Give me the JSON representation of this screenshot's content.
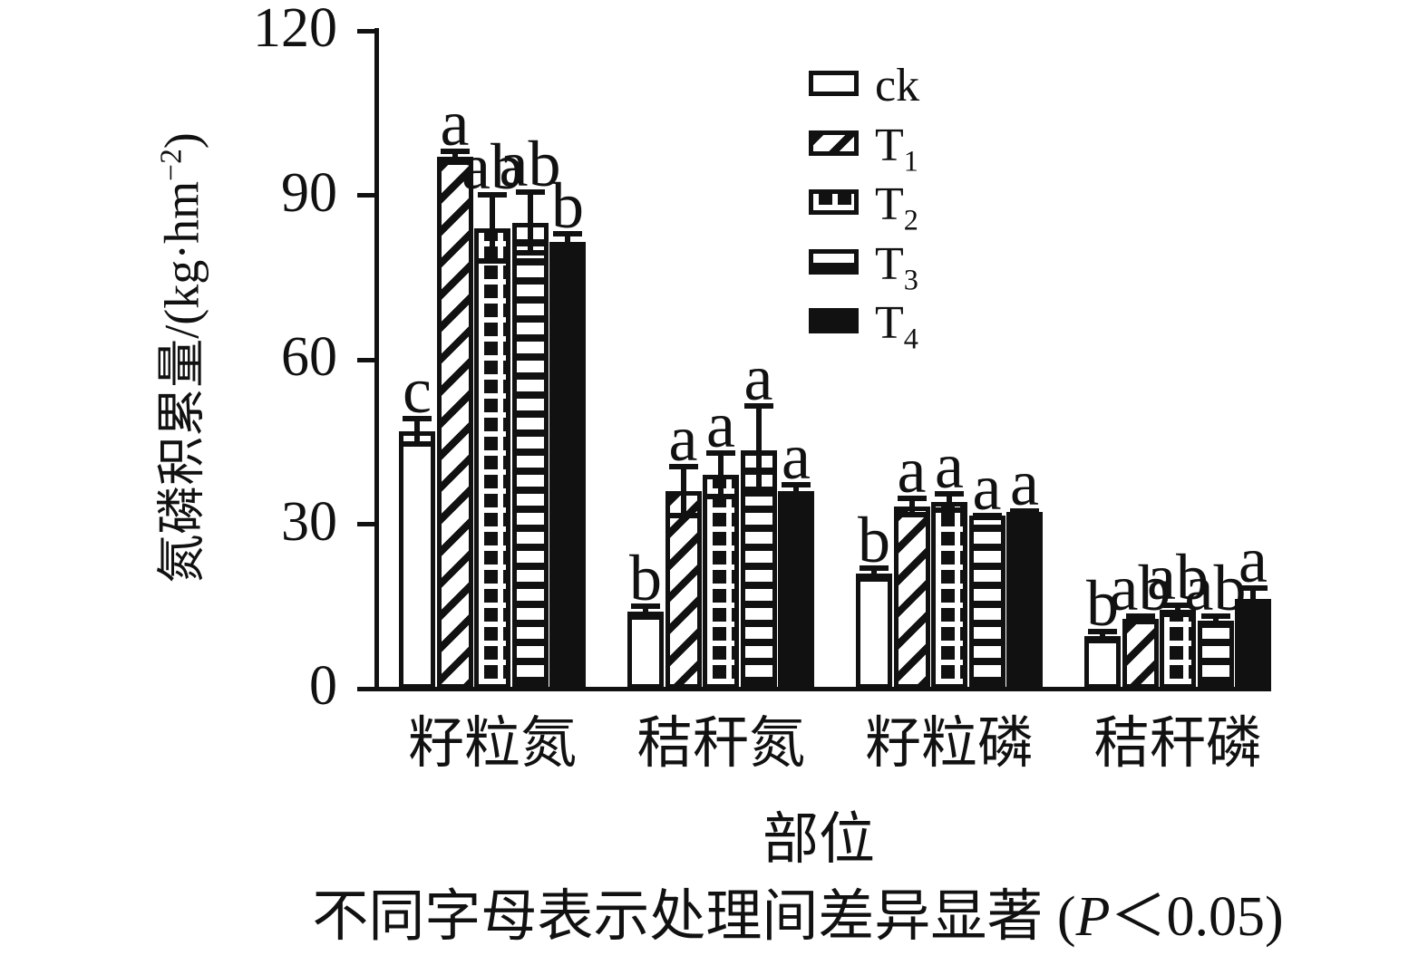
{
  "figure": {
    "y_axis": {
      "title_pre": "氮磷积累量/(kg·hm",
      "title_sup": "−2",
      "title_post": ")",
      "ticks": [
        0,
        30,
        60,
        90,
        120
      ]
    },
    "x_axis": {
      "title": "部位"
    },
    "caption": {
      "pre": "不同字母表示处理间差异显著 (",
      "italic": "P",
      "post": "＜0.05)"
    }
  },
  "legend": {
    "position": "upper-right",
    "items": [
      {
        "text": "ck",
        "sub": ""
      },
      {
        "text": "T",
        "sub": "1"
      },
      {
        "text": "T",
        "sub": "2"
      },
      {
        "text": "T",
        "sub": "3"
      },
      {
        "text": "T",
        "sub": "4"
      }
    ]
  },
  "chart_data": {
    "type": "bar",
    "title": "",
    "xlabel": "部位",
    "ylabel": "氮磷积累量/(kg·hm⁻²)",
    "ylim": [
      0,
      120
    ],
    "yticks": [
      0,
      30,
      60,
      90,
      120
    ],
    "grid": false,
    "legend_position": "upper right",
    "categories": [
      "籽粒氮",
      "秸秆氮",
      "籽粒磷",
      "秸秆磷"
    ],
    "series": [
      {
        "name": "ck",
        "pattern": "plain",
        "values": [
          47,
          14,
          21,
          9.6
        ],
        "errors": [
          2.8,
          1.5,
          1.5,
          1.3
        ],
        "sig_letters": [
          "c",
          "b",
          "b",
          "b"
        ]
      },
      {
        "name": "T1",
        "pattern": "hatch",
        "values": [
          97,
          36,
          33.2,
          12.7
        ],
        "errors": [
          1.5,
          5,
          2,
          1
        ],
        "sig_letters": [
          "a",
          "a",
          "a",
          "ab"
        ]
      },
      {
        "name": "T2",
        "pattern": "check",
        "values": [
          84,
          39,
          34,
          14.4
        ],
        "errors": [
          6.5,
          4.5,
          2,
          1.3
        ],
        "sig_letters": [
          "ab",
          "a",
          "a",
          "ab"
        ]
      },
      {
        "name": "T3",
        "pattern": "hlines",
        "values": [
          85,
          43.5,
          31.6,
          12.4
        ],
        "errors": [
          6,
          8.5,
          0.5,
          1.4
        ],
        "sig_letters": [
          "ab",
          "a",
          "a",
          "ab"
        ]
      },
      {
        "name": "T4",
        "pattern": "solid",
        "values": [
          81.5,
          36,
          32.2,
          16.4
        ],
        "errors": [
          2,
          1.7,
          0.7,
          2.5
        ],
        "sig_letters": [
          "b",
          "a",
          "a",
          "a"
        ]
      }
    ],
    "annotation": "不同字母表示处理间差异显著 (P＜0.05)",
    "colors": {
      "ink": "#111111",
      "background": "#ffffff"
    }
  }
}
